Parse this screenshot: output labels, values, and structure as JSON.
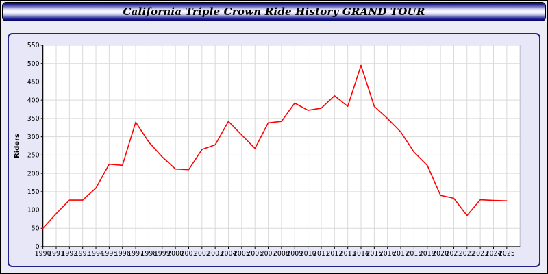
{
  "title": "California Triple Crown Ride History GRAND TOUR",
  "colors": {
    "page_bg": "#ececf6",
    "panel_bg": "#e7e7f8",
    "panel_border": "#22228a",
    "titlebar_navy": "#00006b",
    "plot_bg": "#ffffff",
    "grid": "#d9d9d9",
    "axis": "#000000",
    "line": "#ff0000",
    "tick_text": "#000000"
  },
  "chart_data": {
    "type": "line",
    "title": "California Triple Crown Ride History GRAND TOUR",
    "xlabel": "",
    "ylabel": "Riders",
    "ylim": [
      0,
      550
    ],
    "ytick_step": 50,
    "grid": true,
    "legend": "none",
    "x": [
      1990,
      1991,
      1992,
      1993,
      1994,
      1995,
      1996,
      1997,
      1998,
      1999,
      2000,
      2001,
      2002,
      2003,
      2004,
      2005,
      2006,
      2007,
      2008,
      2009,
      2010,
      2011,
      2012,
      2013,
      2014,
      2015,
      2016,
      2017,
      2018,
      2019,
      2020,
      2021,
      2022,
      2023,
      2024,
      2025
    ],
    "series": [
      {
        "name": "Riders",
        "color": "#ff0000",
        "values": [
          50,
          90,
          127,
          127,
          160,
          225,
          222,
          340,
          285,
          245,
          212,
          210,
          265,
          278,
          342,
          305,
          268,
          338,
          342,
          392,
          372,
          378,
          412,
          383,
          495,
          383,
          350,
          313,
          258,
          222,
          140,
          132,
          85,
          128,
          126,
          125
        ]
      }
    ]
  }
}
